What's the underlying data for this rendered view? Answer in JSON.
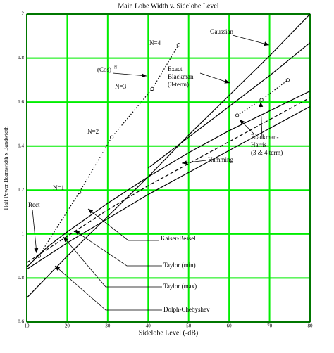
{
  "chart_data": {
    "type": "line",
    "title": "Main Lobe Width v. Sidelobe Level",
    "x_label": "Sidelobe Level (-dB)",
    "y_label": "Half Power Beamwidth x Bandwidth",
    "xlim": [
      10,
      80
    ],
    "ylim": [
      0.6,
      2
    ],
    "xticks": [
      10,
      20,
      30,
      40,
      50,
      60,
      70,
      80
    ],
    "yticks": [
      0.6,
      0.8,
      1,
      1.2,
      1.4,
      1.6,
      1.8,
      2
    ],
    "grid": true,
    "grid_color": "#00ee00",
    "series": [
      {
        "color": "#000000",
        "style": "solid",
        "markers": false,
        "x": [
          10,
          20,
          30,
          40,
          50,
          60,
          70,
          80
        ],
        "values": [
          0.71,
          0.9,
          1.08,
          1.26,
          1.45,
          1.63,
          1.81,
          2.0
        ]
      },
      {
        "color": "#000000",
        "style": "solid",
        "markers": false,
        "x": [
          40,
          50,
          60,
          70,
          80
        ],
        "values": [
          1.3,
          1.44,
          1.58,
          1.72,
          1.87
        ]
      },
      {
        "color": "#000000",
        "style": "dotted",
        "markers": true,
        "x": [
          13,
          23,
          31,
          41,
          47.5
        ],
        "values": [
          0.9,
          1.19,
          1.44,
          1.66,
          1.86
        ]
      },
      {
        "color": "#000000",
        "style": "solid",
        "markers": false,
        "x": [
          10,
          15,
          20,
          30,
          40,
          50,
          60,
          70,
          80
        ],
        "values": [
          0.85,
          0.94,
          1.01,
          1.14,
          1.26,
          1.37,
          1.47,
          1.56,
          1.65
        ]
      },
      {
        "color": "#000000",
        "style": "dashed",
        "markers": false,
        "x": [
          10,
          20,
          30,
          40,
          50,
          60,
          70,
          80
        ],
        "values": [
          0.87,
          0.99,
          1.11,
          1.22,
          1.32,
          1.42,
          1.52,
          1.62
        ]
      },
      {
        "color": "#000000",
        "style": "dotted",
        "markers": true,
        "x": [
          62,
          68,
          74.5
        ],
        "values": [
          1.54,
          1.61,
          1.7
        ]
      },
      {
        "color": "#000000",
        "style": "solid",
        "markers": false,
        "x": [
          10,
          20,
          30,
          40,
          50,
          60,
          70,
          80
        ],
        "values": [
          0.84,
          0.96,
          1.07,
          1.18,
          1.28,
          1.38,
          1.48,
          1.58
        ]
      }
    ],
    "annotations": [
      [
        "Gaussian"
      ],
      [
        "Exact",
        "Blackman",
        "(3-term)"
      ],
      [
        "(Cos)"
      ],
      [
        "N"
      ],
      [
        "N=4"
      ],
      [
        "N=3"
      ],
      [
        "N=2"
      ],
      [
        "N=1"
      ],
      [
        "Blackman-",
        "Harris",
        "(3 & 4 term)"
      ],
      [
        "Hamming"
      ],
      [
        "Rect"
      ],
      [
        "Kaiser-Bessel"
      ],
      [
        "Taylor (min)"
      ],
      [
        "Taylor (max)"
      ],
      [
        "Dolph-Chebyshev"
      ]
    ]
  }
}
